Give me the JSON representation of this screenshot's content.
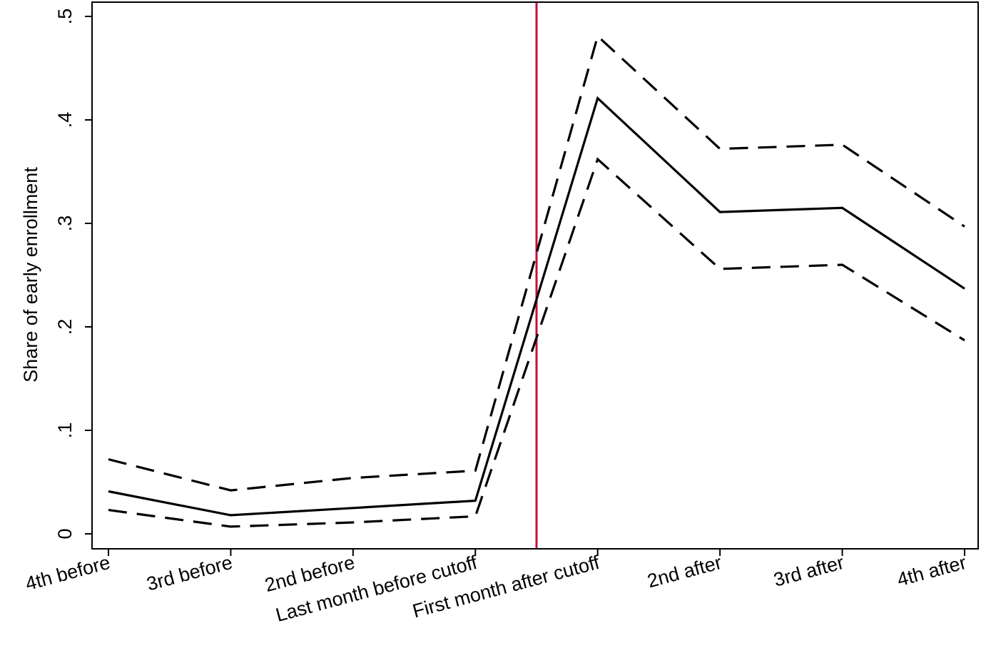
{
  "chart_data": {
    "type": "line",
    "title": "",
    "xlabel": "",
    "ylabel": "Share of early enrollment",
    "categories": [
      "4th before",
      "3rd before",
      "2nd before",
      "Last month before cutoff",
      "First month after cutoff",
      "2nd after",
      "3rd after",
      "4th after"
    ],
    "ylim": [
      -0.015,
      0.5
    ],
    "yticks": [
      0,
      0.1,
      0.2,
      0.3,
      0.4,
      0.5
    ],
    "ytick_labels": [
      "0",
      ".1",
      ".2",
      ".3",
      ".4",
      ".5"
    ],
    "cutoff_x": 4.5,
    "grid": false,
    "series": [
      {
        "style": "solid",
        "values": [
          0.041,
          0.018,
          0.025,
          0.032,
          0.421,
          0.311,
          0.315,
          0.237
        ]
      },
      {
        "style": "dashed",
        "values": [
          0.072,
          0.042,
          0.054,
          0.061,
          0.481,
          0.372,
          0.376,
          0.297
        ]
      },
      {
        "style": "dashed",
        "values": [
          0.023,
          0.007,
          0.011,
          0.017,
          0.362,
          0.256,
          0.26,
          0.187
        ]
      }
    ],
    "colors": {
      "line": "#000000",
      "cutoff": "#c0103c",
      "axis": "#000000"
    }
  }
}
